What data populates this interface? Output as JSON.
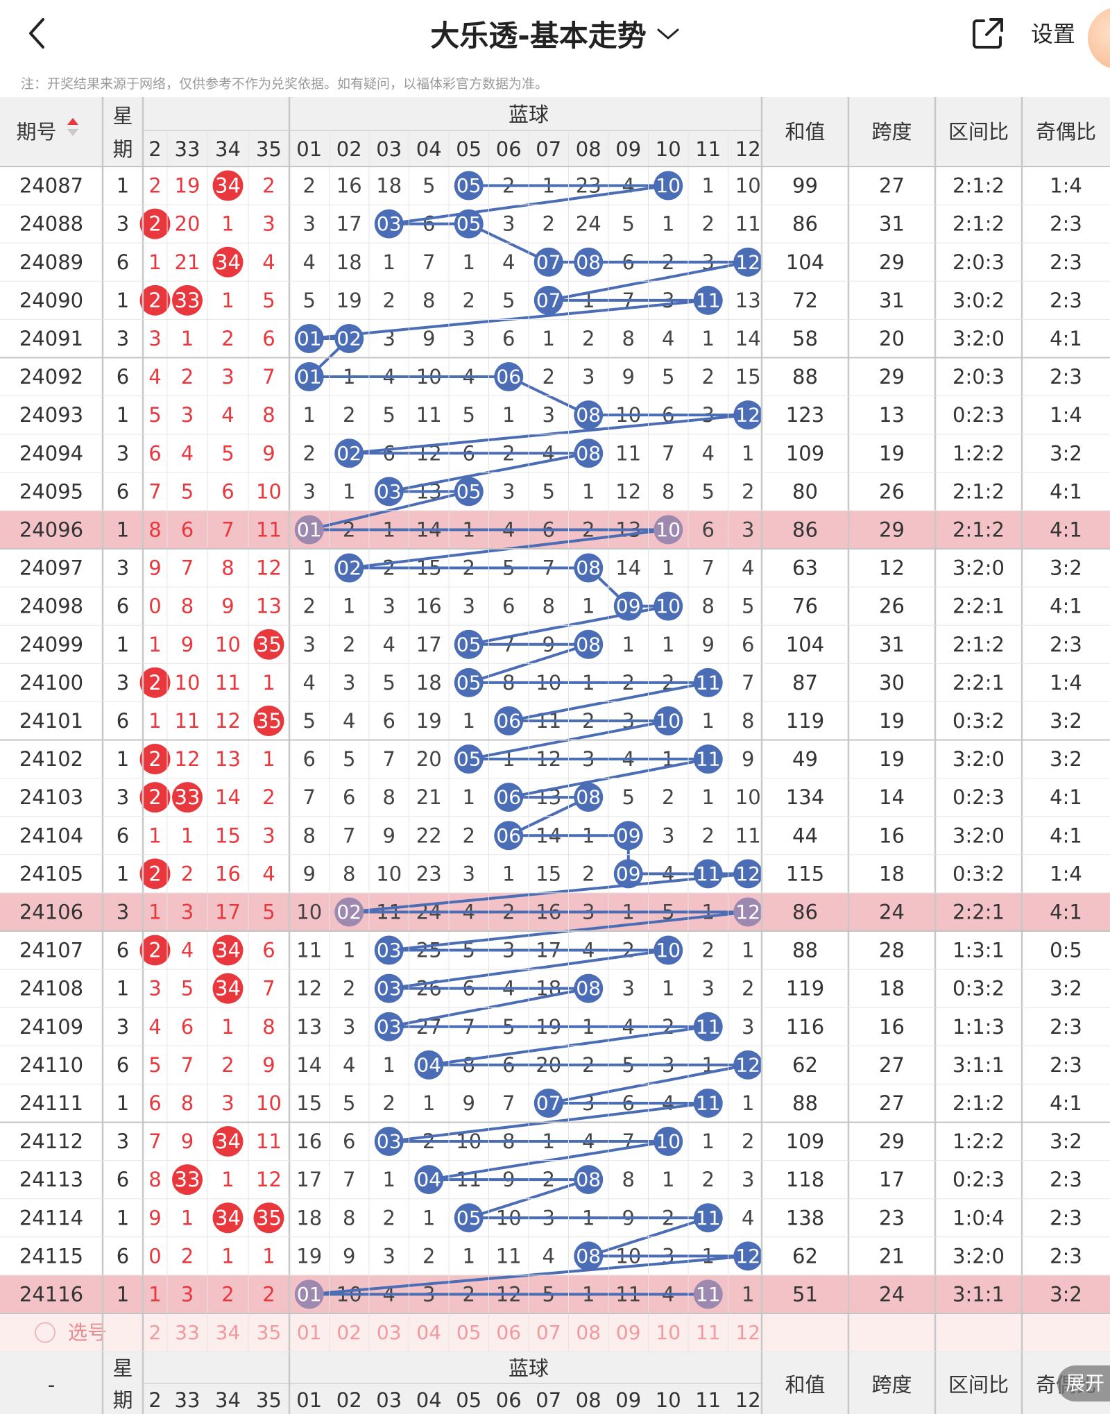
{
  "header": {
    "title": "大乐透-基本走势",
    "settings_label": "设置"
  },
  "notice": "注：开奖结果来源于网络，仅供参考不作为兑奖依据。如有疑问，以福体彩官方数据为准。",
  "table": {
    "period_header": "期号",
    "week_header_1": "星",
    "week_header_2": "期",
    "blue_header": "蓝球",
    "stats_headers": [
      "和值",
      "跨度",
      "区间比",
      "奇偶比"
    ],
    "front_cols": [
      "2",
      "33",
      "34",
      "35"
    ],
    "back_cols": [
      "01",
      "02",
      "03",
      "04",
      "05",
      "06",
      "07",
      "08",
      "09",
      "10",
      "11",
      "12"
    ],
    "rows": [
      {
        "p": "24087",
        "w": "1",
        "f": [
          "2",
          "19",
          "34",
          "2"
        ],
        "b": [
          "2",
          "16",
          "18",
          "5",
          "05",
          "2",
          "1",
          "23",
          "4",
          "10",
          "1",
          "10"
        ],
        "sum": "99",
        "span": "27",
        "zone": "2:1:2",
        "oe": "1:4",
        "hl": false
      },
      {
        "p": "24088",
        "w": "3",
        "f": [
          "2",
          "20",
          "1",
          "3"
        ],
        "b": [
          "3",
          "17",
          "03",
          "6",
          "05",
          "3",
          "2",
          "24",
          "5",
          "1",
          "2",
          "11"
        ],
        "sum": "86",
        "span": "31",
        "zone": "2:1:2",
        "oe": "2:3",
        "hl": false
      },
      {
        "p": "24089",
        "w": "6",
        "f": [
          "1",
          "21",
          "34",
          "4"
        ],
        "b": [
          "4",
          "18",
          "1",
          "7",
          "1",
          "4",
          "07",
          "08",
          "6",
          "2",
          "3",
          "12"
        ],
        "sum": "104",
        "span": "29",
        "zone": "2:0:3",
        "oe": "2:3",
        "hl": false
      },
      {
        "p": "24090",
        "w": "1",
        "f": [
          "2",
          "33",
          "1",
          "5"
        ],
        "b": [
          "5",
          "19",
          "2",
          "8",
          "2",
          "5",
          "07",
          "1",
          "7",
          "3",
          "11",
          "13"
        ],
        "sum": "72",
        "span": "31",
        "zone": "3:0:2",
        "oe": "2:3",
        "hl": false
      },
      {
        "p": "24091",
        "w": "3",
        "f": [
          "3",
          "1",
          "2",
          "6"
        ],
        "b": [
          "01",
          "02",
          "3",
          "9",
          "3",
          "6",
          "1",
          "2",
          "8",
          "4",
          "1",
          "14"
        ],
        "sum": "58",
        "span": "20",
        "zone": "3:2:0",
        "oe": "4:1",
        "hl": false
      },
      {
        "p": "24092",
        "w": "6",
        "f": [
          "4",
          "2",
          "3",
          "7"
        ],
        "b": [
          "01",
          "1",
          "4",
          "10",
          "4",
          "06",
          "2",
          "3",
          "9",
          "5",
          "2",
          "15"
        ],
        "sum": "88",
        "span": "29",
        "zone": "2:0:3",
        "oe": "2:3",
        "hl": false
      },
      {
        "p": "24093",
        "w": "1",
        "f": [
          "5",
          "3",
          "4",
          "8"
        ],
        "b": [
          "1",
          "2",
          "5",
          "11",
          "5",
          "1",
          "3",
          "08",
          "10",
          "6",
          "3",
          "12"
        ],
        "sum": "123",
        "span": "13",
        "zone": "0:2:3",
        "oe": "1:4",
        "hl": false
      },
      {
        "p": "24094",
        "w": "3",
        "f": [
          "6",
          "4",
          "5",
          "9"
        ],
        "b": [
          "2",
          "02",
          "6",
          "12",
          "6",
          "2",
          "4",
          "08",
          "11",
          "7",
          "4",
          "1"
        ],
        "sum": "109",
        "span": "19",
        "zone": "1:2:2",
        "oe": "3:2",
        "hl": false
      },
      {
        "p": "24095",
        "w": "6",
        "f": [
          "7",
          "5",
          "6",
          "10"
        ],
        "b": [
          "3",
          "1",
          "03",
          "13",
          "05",
          "3",
          "5",
          "1",
          "12",
          "8",
          "5",
          "2"
        ],
        "sum": "80",
        "span": "26",
        "zone": "2:1:2",
        "oe": "4:1",
        "hl": false
      },
      {
        "p": "24096",
        "w": "1",
        "f": [
          "8",
          "6",
          "7",
          "11"
        ],
        "b": [
          "01",
          "2",
          "1",
          "14",
          "1",
          "4",
          "6",
          "2",
          "13",
          "10",
          "6",
          "3"
        ],
        "sum": "86",
        "span": "29",
        "zone": "2:1:2",
        "oe": "4:1",
        "hl": true
      },
      {
        "p": "24097",
        "w": "3",
        "f": [
          "9",
          "7",
          "8",
          "12"
        ],
        "b": [
          "1",
          "02",
          "2",
          "15",
          "2",
          "5",
          "7",
          "08",
          "14",
          "1",
          "7",
          "4"
        ],
        "sum": "63",
        "span": "12",
        "zone": "3:2:0",
        "oe": "3:2",
        "hl": false
      },
      {
        "p": "24098",
        "w": "6",
        "f": [
          "0",
          "8",
          "9",
          "13"
        ],
        "b": [
          "2",
          "1",
          "3",
          "16",
          "3",
          "6",
          "8",
          "1",
          "09",
          "10",
          "8",
          "5"
        ],
        "sum": "76",
        "span": "26",
        "zone": "2:2:1",
        "oe": "4:1",
        "hl": false
      },
      {
        "p": "24099",
        "w": "1",
        "f": [
          "1",
          "9",
          "10",
          "35"
        ],
        "b": [
          "3",
          "2",
          "4",
          "17",
          "05",
          "7",
          "9",
          "08",
          "1",
          "1",
          "9",
          "6"
        ],
        "sum": "104",
        "span": "31",
        "zone": "2:1:2",
        "oe": "2:3",
        "hl": false
      },
      {
        "p": "24100",
        "w": "3",
        "f": [
          "2",
          "10",
          "11",
          "1"
        ],
        "b": [
          "4",
          "3",
          "5",
          "18",
          "05",
          "8",
          "10",
          "1",
          "2",
          "2",
          "11",
          "7"
        ],
        "sum": "87",
        "span": "30",
        "zone": "2:2:1",
        "oe": "1:4",
        "hl": false
      },
      {
        "p": "24101",
        "w": "6",
        "f": [
          "1",
          "11",
          "12",
          "35"
        ],
        "b": [
          "5",
          "4",
          "6",
          "19",
          "1",
          "06",
          "11",
          "2",
          "3",
          "10",
          "1",
          "8"
        ],
        "sum": "119",
        "span": "19",
        "zone": "0:3:2",
        "oe": "3:2",
        "hl": false
      },
      {
        "p": "24102",
        "w": "1",
        "f": [
          "2",
          "12",
          "13",
          "1"
        ],
        "b": [
          "6",
          "5",
          "7",
          "20",
          "05",
          "1",
          "12",
          "3",
          "4",
          "1",
          "11",
          "9"
        ],
        "sum": "49",
        "span": "19",
        "zone": "3:2:0",
        "oe": "3:2",
        "hl": false
      },
      {
        "p": "24103",
        "w": "3",
        "f": [
          "2",
          "33",
          "14",
          "2"
        ],
        "b": [
          "7",
          "6",
          "8",
          "21",
          "1",
          "06",
          "13",
          "08",
          "5",
          "2",
          "1",
          "10"
        ],
        "sum": "134",
        "span": "14",
        "zone": "0:2:3",
        "oe": "4:1",
        "hl": false
      },
      {
        "p": "24104",
        "w": "6",
        "f": [
          "1",
          "1",
          "15",
          "3"
        ],
        "b": [
          "8",
          "7",
          "9",
          "22",
          "2",
          "06",
          "14",
          "1",
          "09",
          "3",
          "2",
          "11"
        ],
        "sum": "44",
        "span": "16",
        "zone": "3:2:0",
        "oe": "4:1",
        "hl": false
      },
      {
        "p": "24105",
        "w": "1",
        "f": [
          "2",
          "2",
          "16",
          "4"
        ],
        "b": [
          "9",
          "8",
          "10",
          "23",
          "3",
          "1",
          "15",
          "2",
          "09",
          "4",
          "11",
          "12"
        ],
        "sum": "115",
        "span": "18",
        "zone": "0:3:2",
        "oe": "1:4",
        "hl": false
      },
      {
        "p": "24106",
        "w": "3",
        "f": [
          "1",
          "3",
          "17",
          "5"
        ],
        "b": [
          "10",
          "02",
          "11",
          "24",
          "4",
          "2",
          "16",
          "3",
          "1",
          "5",
          "1",
          "12"
        ],
        "sum": "86",
        "span": "24",
        "zone": "2:2:1",
        "oe": "4:1",
        "hl": true
      },
      {
        "p": "24107",
        "w": "6",
        "f": [
          "2",
          "4",
          "34",
          "6"
        ],
        "b": [
          "11",
          "1",
          "03",
          "25",
          "5",
          "3",
          "17",
          "4",
          "2",
          "10",
          "2",
          "1"
        ],
        "sum": "88",
        "span": "28",
        "zone": "1:3:1",
        "oe": "0:5",
        "hl": false
      },
      {
        "p": "24108",
        "w": "1",
        "f": [
          "3",
          "5",
          "34",
          "7"
        ],
        "b": [
          "12",
          "2",
          "03",
          "26",
          "6",
          "4",
          "18",
          "08",
          "3",
          "1",
          "3",
          "2"
        ],
        "sum": "119",
        "span": "18",
        "zone": "0:3:2",
        "oe": "3:2",
        "hl": false
      },
      {
        "p": "24109",
        "w": "3",
        "f": [
          "4",
          "6",
          "1",
          "8"
        ],
        "b": [
          "13",
          "3",
          "03",
          "27",
          "7",
          "5",
          "19",
          "1",
          "4",
          "2",
          "11",
          "3"
        ],
        "sum": "116",
        "span": "16",
        "zone": "1:1:3",
        "oe": "2:3",
        "hl": false
      },
      {
        "p": "24110",
        "w": "6",
        "f": [
          "5",
          "7",
          "2",
          "9"
        ],
        "b": [
          "14",
          "4",
          "1",
          "04",
          "8",
          "6",
          "20",
          "2",
          "5",
          "3",
          "1",
          "12"
        ],
        "sum": "62",
        "span": "27",
        "zone": "3:1:1",
        "oe": "2:3",
        "hl": false
      },
      {
        "p": "24111",
        "w": "1",
        "f": [
          "6",
          "8",
          "3",
          "10"
        ],
        "b": [
          "15",
          "5",
          "2",
          "1",
          "9",
          "7",
          "07",
          "3",
          "6",
          "4",
          "11",
          "1"
        ],
        "sum": "88",
        "span": "27",
        "zone": "2:1:2",
        "oe": "4:1",
        "hl": false
      },
      {
        "p": "24112",
        "w": "3",
        "f": [
          "7",
          "9",
          "34",
          "11"
        ],
        "b": [
          "16",
          "6",
          "03",
          "2",
          "10",
          "8",
          "1",
          "4",
          "7",
          "10",
          "1",
          "2"
        ],
        "sum": "109",
        "span": "29",
        "zone": "1:2:2",
        "oe": "3:2",
        "hl": false
      },
      {
        "p": "24113",
        "w": "6",
        "f": [
          "8",
          "33",
          "1",
          "12"
        ],
        "b": [
          "17",
          "7",
          "1",
          "04",
          "11",
          "9",
          "2",
          "08",
          "8",
          "1",
          "2",
          "3"
        ],
        "sum": "118",
        "span": "17",
        "zone": "0:2:3",
        "oe": "2:3",
        "hl": false
      },
      {
        "p": "24114",
        "w": "1",
        "f": [
          "9",
          "1",
          "34",
          "35"
        ],
        "b": [
          "18",
          "8",
          "2",
          "1",
          "05",
          "10",
          "3",
          "1",
          "9",
          "2",
          "11",
          "4"
        ],
        "sum": "138",
        "span": "23",
        "zone": "1:0:4",
        "oe": "2:3",
        "hl": false
      },
      {
        "p": "24115",
        "w": "6",
        "f": [
          "0",
          "2",
          "1",
          "1"
        ],
        "b": [
          "19",
          "9",
          "3",
          "2",
          "1",
          "11",
          "4",
          "08",
          "10",
          "3",
          "1",
          "12"
        ],
        "sum": "62",
        "span": "21",
        "zone": "3:2:0",
        "oe": "2:3",
        "hl": false
      },
      {
        "p": "24116",
        "w": "1",
        "f": [
          "1",
          "3",
          "2",
          "2"
        ],
        "b": [
          "01",
          "10",
          "4",
          "3",
          "2",
          "12",
          "5",
          "1",
          "11",
          "4",
          "11",
          "1"
        ],
        "sum": "51",
        "span": "24",
        "zone": "3:1:1",
        "oe": "3:2",
        "hl": true
      }
    ],
    "select_label": "选号",
    "footer_dash": "-"
  },
  "expand_label": "展开",
  "colors": {
    "red": "#e8383d",
    "blue": "#4a6db5",
    "highlight": "#f3c2c6",
    "header_bg": "#f0f0f0"
  }
}
